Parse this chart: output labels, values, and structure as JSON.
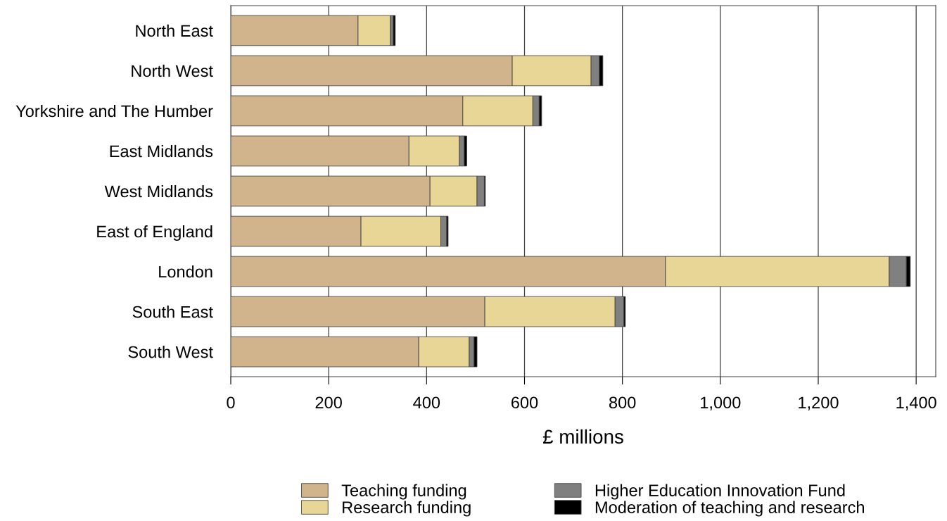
{
  "chart_data": {
    "type": "bar",
    "orientation": "horizontal",
    "stacked": true,
    "categories": [
      "North East",
      "North West",
      "Yorkshire and The Humber",
      "East Midlands",
      "West Midlands",
      "East of England",
      "London",
      "South East",
      "South West"
    ],
    "series": [
      {
        "name": "Teaching funding",
        "color": "#d2b48c",
        "values": [
          260,
          575,
          474,
          364,
          407,
          266,
          888,
          519,
          384
        ]
      },
      {
        "name": "Research funding",
        "color": "#e8d696",
        "values": [
          66,
          161,
          143,
          103,
          96,
          163,
          457,
          266,
          103
        ]
      },
      {
        "name": "Higher Education Innovation Fund",
        "color": "#808080",
        "values": [
          6,
          17,
          13,
          10,
          15,
          12,
          35,
          18,
          10
        ]
      },
      {
        "name": "Moderation of teaching and research",
        "color": "#000000",
        "values": [
          4,
          7,
          5,
          5,
          2,
          3,
          8,
          3,
          6
        ]
      }
    ],
    "xlabel": "£ millions",
    "xlim": [
      0,
      1440
    ],
    "xticks": [
      0,
      200,
      400,
      600,
      800,
      {
        "value": 1000,
        "label": "1,000"
      },
      {
        "value": 1200,
        "label": "1,200"
      },
      {
        "value": 1400,
        "label": "1,400"
      }
    ],
    "grid": "x",
    "legend": "bottom"
  }
}
